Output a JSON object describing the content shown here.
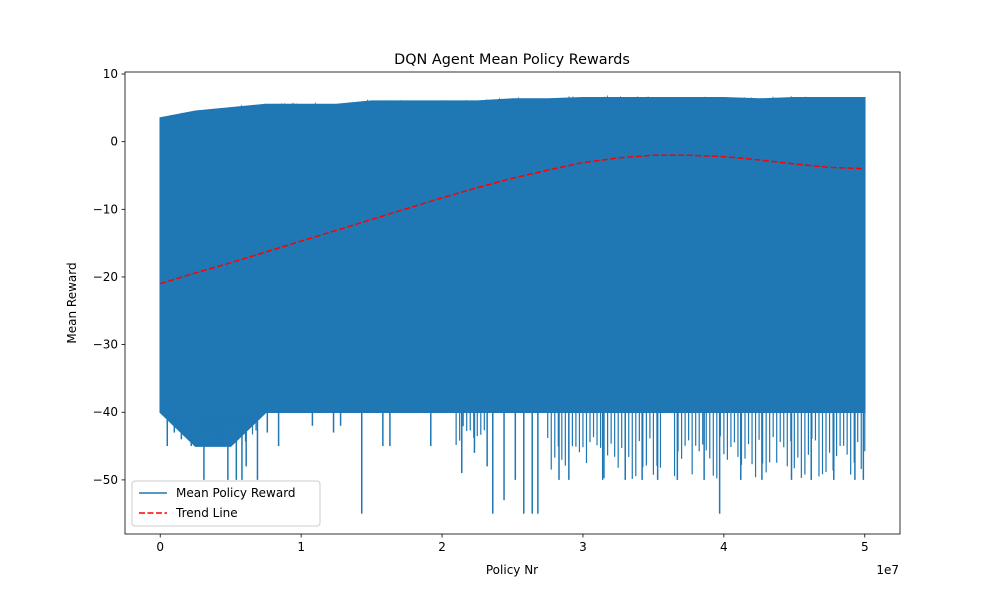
{
  "chart_data": {
    "type": "line",
    "title": "DQN Agent Mean Policy Rewards",
    "xlabel": "Policy Nr",
    "ylabel": "Mean Reward",
    "x_offset_label": "1e7",
    "xlim": [
      -2.5,
      52.5
    ],
    "ylim": [
      -58,
      10.3
    ],
    "x_tick_values": [
      0,
      10,
      20,
      30,
      40,
      50
    ],
    "x_tick_labels": [
      "0",
      "1",
      "2",
      "3",
      "4",
      "5"
    ],
    "y_tick_values": [
      10,
      0,
      -10,
      -20,
      -30,
      -40,
      -50
    ],
    "y_tick_labels": [
      "10",
      "0",
      "−10",
      "−20",
      "−30",
      "−40",
      "−50"
    ],
    "grid": false,
    "legend_position": "lower-left",
    "series": [
      {
        "name": "Mean Policy Reward",
        "style": "solid",
        "color": "#1f77b4",
        "x": [
          0,
          2.5,
          5,
          7.5,
          10,
          12.5,
          15,
          17.5,
          20,
          22.5,
          25,
          27.5,
          30,
          32.5,
          35,
          37.5,
          40,
          42.5,
          45,
          47.5,
          50
        ],
        "upper": [
          3.5,
          4.5,
          5,
          5.5,
          5.5,
          5.5,
          6,
          6,
          6,
          6,
          6.3,
          6.3,
          6.5,
          6.5,
          6.5,
          6.5,
          6.5,
          6.3,
          6.5,
          6.5,
          6.5
        ],
        "lower": [
          -40,
          -45,
          -45,
          -40,
          -40,
          -40,
          -40,
          -40,
          -40,
          -40,
          -40,
          -40,
          -40,
          -40,
          -40,
          -40,
          -40,
          -40,
          -40,
          -40,
          -40
        ],
        "downward_spikes": [
          [
            0.5,
            -45
          ],
          [
            1.0,
            -43
          ],
          [
            1.5,
            -44
          ],
          [
            2.2,
            -45
          ],
          [
            3.1,
            -50
          ],
          [
            4.8,
            -50
          ],
          [
            5.4,
            -50
          ],
          [
            5.8,
            -50
          ],
          [
            6.1,
            -48
          ],
          [
            6.9,
            -50
          ],
          [
            7.6,
            -43
          ],
          [
            8.4,
            -45
          ],
          [
            10.8,
            -42
          ],
          [
            12.3,
            -43
          ],
          [
            12.8,
            -42
          ],
          [
            14.3,
            -55
          ],
          [
            15.8,
            -45
          ],
          [
            16.3,
            -45
          ],
          [
            19.2,
            -45
          ],
          [
            21.4,
            -49
          ],
          [
            22.3,
            -46
          ],
          [
            23.2,
            -48
          ],
          [
            23.6,
            -55
          ],
          [
            24.4,
            -53
          ],
          [
            25.2,
            -50
          ],
          [
            25.8,
            -55
          ],
          [
            26.4,
            -55
          ],
          [
            26.8,
            -55
          ],
          [
            28.3,
            -50
          ],
          [
            29.0,
            -50
          ],
          [
            31.4,
            -50
          ],
          [
            33.0,
            -50
          ],
          [
            34.2,
            -50
          ],
          [
            35.3,
            -50
          ],
          [
            36.7,
            -50
          ],
          [
            38.6,
            -50
          ],
          [
            39.7,
            -55
          ],
          [
            41.2,
            -50
          ],
          [
            42.7,
            -50
          ],
          [
            44.8,
            -50
          ],
          [
            46.2,
            -50
          ],
          [
            47.8,
            -50
          ],
          [
            49.3,
            -50
          ],
          [
            49.9,
            -50
          ]
        ]
      },
      {
        "name": "Trend Line",
        "style": "dashed",
        "color": "#ff0000",
        "x": [
          0,
          2.5,
          5,
          7.5,
          10,
          12.5,
          15,
          17.5,
          20,
          22.5,
          25,
          27.5,
          30,
          32.5,
          35,
          37.5,
          40,
          42.5,
          45,
          47.5,
          50
        ],
        "y": [
          -21,
          -19.4,
          -17.9,
          -16.3,
          -14.7,
          -13.1,
          -11.5,
          -9.9,
          -8.3,
          -6.8,
          -5.4,
          -4.2,
          -3.1,
          -2.4,
          -2.0,
          -2.0,
          -2.2,
          -2.7,
          -3.3,
          -3.8,
          -4.0
        ]
      }
    ]
  }
}
